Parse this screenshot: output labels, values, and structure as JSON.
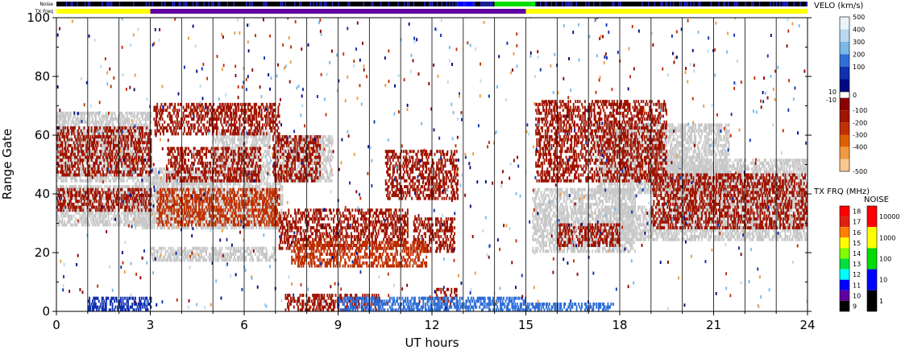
{
  "chart_data": {
    "type": "heatmap",
    "xlabel": "UT hours",
    "ylabel": "Range Gate",
    "xlim": [
      0,
      24
    ],
    "ylim": [
      0,
      100
    ],
    "x_ticks": [
      "0",
      "3",
      "6",
      "9",
      "12",
      "15",
      "18",
      "21",
      "24"
    ],
    "x_tick_values": [
      0,
      3,
      6,
      9,
      12,
      15,
      18,
      21,
      24
    ],
    "y_ticks": [
      "0",
      "20",
      "40",
      "60",
      "80",
      "100"
    ],
    "y_tick_values": [
      0,
      20,
      40,
      60,
      80,
      100
    ],
    "vertical_hour_lines": true,
    "status_rows": [
      {
        "label": "Noise",
        "segments": [
          {
            "x0": 0,
            "x1": 12.8,
            "level": "1-10"
          },
          {
            "x0": 12.8,
            "x1": 13.3,
            "level": "10-100"
          },
          {
            "x0": 13.3,
            "x1": 14.0,
            "level": "1-10"
          },
          {
            "x0": 14.0,
            "x1": 15.3,
            "level": "100-1000"
          },
          {
            "x0": 15.3,
            "x1": 24,
            "level": "1-10"
          }
        ]
      },
      {
        "label": "TX Freq",
        "segments": [
          {
            "x0": 0,
            "x1": 3,
            "mhz": 15
          },
          {
            "x0": 3,
            "x1": 15,
            "mhz": 10
          },
          {
            "x0": 15,
            "x1": 24,
            "mhz": 15
          }
        ]
      }
    ],
    "velocity_scale": {
      "title": "VELO (km/s)",
      "tick_labels": [
        "500",
        "400",
        "300",
        "200",
        "100",
        "10",
        "0",
        "-10",
        "-100",
        "-200",
        "-300",
        "-400",
        "-500"
      ],
      "positive_colors": [
        "#eaf4fb",
        "#b8d8f0",
        "#7ab8e8",
        "#2f6fd8",
        "#1030b0",
        "#000a80"
      ],
      "negative_colors": [
        "#8b0000",
        "#a01400",
        "#c03000",
        "#dd6000",
        "#ef9a40",
        "#f7c890"
      ],
      "ground_scatter_color": "#c8c8c8"
    },
    "tx_frq_scale": {
      "title": "TX FRQ (MHz)",
      "tick_labels": [
        "18",
        "17",
        "16",
        "15",
        "14",
        "13",
        "12",
        "11",
        "10",
        "9"
      ],
      "colors": [
        "#ff0000",
        "#e02010",
        "#ff8000",
        "#ffff00",
        "#80ff00",
        "#00e040",
        "#00ffff",
        "#0000ff",
        "#6000a0",
        "#000000"
      ]
    },
    "noise_scale": {
      "title": "NOISE",
      "tick_labels": [
        "10000",
        "1000",
        "100",
        "10",
        "1"
      ],
      "colors": [
        "#ff0000",
        "#ffff00",
        "#00dd00",
        "#0000ff",
        "#000000"
      ]
    },
    "ground_scatter_bands": [
      {
        "x": [
          0,
          3
        ],
        "y": [
          29,
          43
        ]
      },
      {
        "x": [
          0,
          3
        ],
        "y": [
          44,
          68
        ]
      },
      {
        "x": [
          3,
          7
        ],
        "y": [
          17,
          22
        ]
      },
      {
        "x": [
          2.5,
          7.2
        ],
        "y": [
          28,
          44
        ]
      },
      {
        "x": [
          3,
          5
        ],
        "y": [
          43,
          49
        ]
      },
      {
        "x": [
          5,
          6.8
        ],
        "y": [
          44,
          62
        ]
      },
      {
        "x": [
          7,
          8.8
        ],
        "y": [
          44,
          60
        ]
      },
      {
        "x": [
          15.2,
          18.5
        ],
        "y": [
          20,
          42
        ]
      },
      {
        "x": [
          17.2,
          21.5
        ],
        "y": [
          40,
          64
        ]
      },
      {
        "x": [
          19.5,
          24
        ],
        "y": [
          36,
          52
        ]
      },
      {
        "x": [
          17.5,
          24
        ],
        "y": [
          24,
          36
        ]
      }
    ],
    "ionospheric_scatter_bands": [
      {
        "x": [
          7.1,
          11.2
        ],
        "y": [
          21,
          35
        ],
        "velocity": -150
      },
      {
        "x": [
          11.4,
          12.7
        ],
        "y": [
          20,
          32
        ],
        "velocity": -150
      },
      {
        "x": [
          7.5,
          11.8
        ],
        "y": [
          15,
          24
        ],
        "velocity": -180
      },
      {
        "x": [
          7.3,
          10.3
        ],
        "y": [
          0,
          6
        ],
        "velocity": -160
      },
      {
        "x": [
          12.1,
          12.8
        ],
        "y": [
          2,
          8
        ],
        "velocity": -150
      },
      {
        "x": [
          0,
          3
        ],
        "y": [
          34,
          42
        ],
        "velocity": -150
      },
      {
        "x": [
          0,
          3
        ],
        "y": [
          46,
          63
        ],
        "velocity": -150
      },
      {
        "x": [
          3.2,
          7.1
        ],
        "y": [
          29,
          42
        ],
        "velocity": -170
      },
      {
        "x": [
          3.1,
          7.1
        ],
        "y": [
          60,
          71
        ],
        "velocity": -150
      },
      {
        "x": [
          3.5,
          6.5
        ],
        "y": [
          44,
          56
        ],
        "velocity": -150
      },
      {
        "x": [
          6.9,
          8.4
        ],
        "y": [
          44,
          60
        ],
        "velocity": -150
      },
      {
        "x": [
          10.5,
          12.8
        ],
        "y": [
          38,
          55
        ],
        "velocity": -150
      },
      {
        "x": [
          15.3,
          19.5
        ],
        "y": [
          44,
          72
        ],
        "velocity": -150
      },
      {
        "x": [
          19.0,
          24
        ],
        "y": [
          28,
          47
        ],
        "velocity": -150
      },
      {
        "x": [
          16.0,
          18.0
        ],
        "y": [
          22,
          30
        ],
        "velocity": -150
      }
    ],
    "near_range_flow": [
      {
        "x": [
          9.0,
          15.0
        ],
        "y": [
          0,
          5
        ],
        "velocity": 200
      },
      {
        "x": [
          15.0,
          17.8
        ],
        "y": [
          0,
          3
        ],
        "velocity": 200
      },
      {
        "x": [
          1.0,
          3.0
        ],
        "y": [
          0,
          5
        ],
        "velocity": 150
      }
    ]
  }
}
